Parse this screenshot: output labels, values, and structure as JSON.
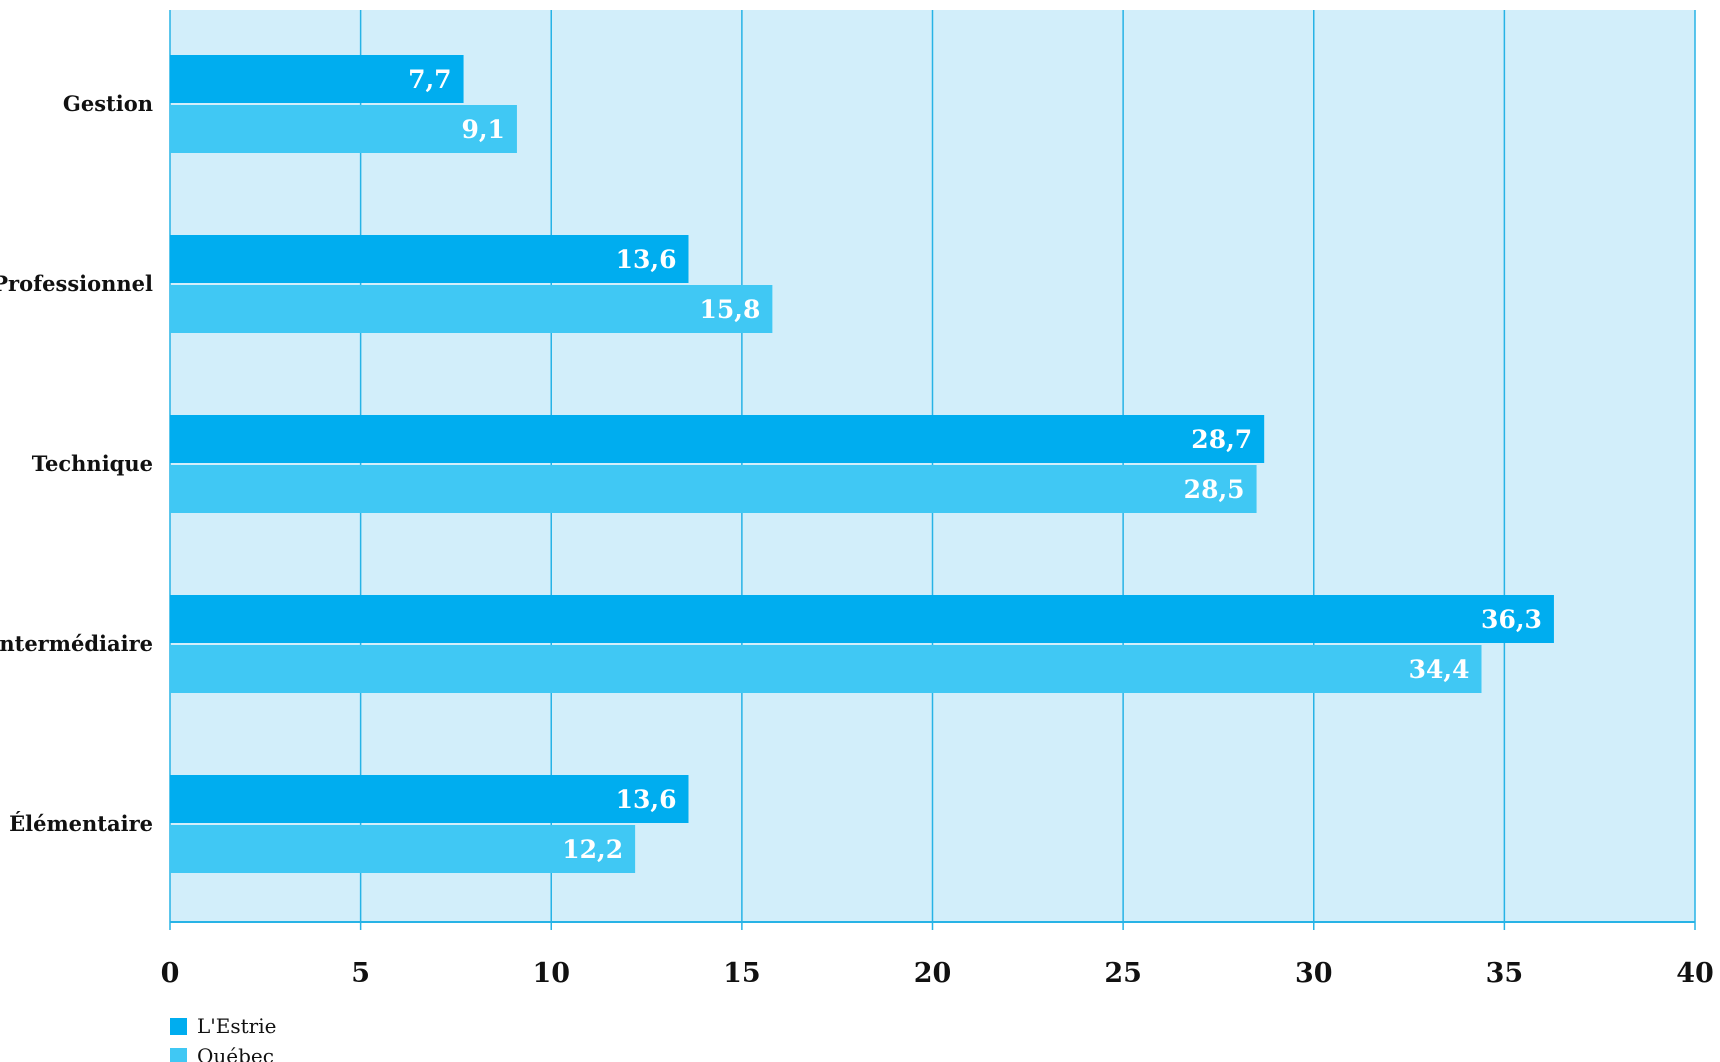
{
  "chart_data": {
    "type": "bar",
    "orientation": "horizontal",
    "categories": [
      "Gestion",
      "Professionnel",
      "Technique",
      "Intermédiaire",
      "Élémentaire"
    ],
    "series": [
      {
        "name": "L'Estrie",
        "values": [
          7.7,
          13.6,
          28.7,
          36.3,
          13.6
        ],
        "labels": [
          "7,7",
          "13,6",
          "28,7",
          "36,3",
          "13,6"
        ]
      },
      {
        "name": "Québec",
        "values": [
          9.1,
          15.8,
          28.5,
          34.4,
          12.2
        ],
        "labels": [
          "9,1",
          "15,8",
          "28,5",
          "34,4",
          "12,2"
        ]
      }
    ],
    "xticks": [
      0,
      5,
      10,
      15,
      20,
      25,
      30,
      35,
      40
    ],
    "xlim": [
      0,
      40
    ],
    "grid": true,
    "legend": "bottom-left"
  },
  "colors": {
    "estrie": "#00adef",
    "quebec": "#40c8f4",
    "plot_bg": "#d2eefa",
    "grid": "#27b3e6"
  }
}
